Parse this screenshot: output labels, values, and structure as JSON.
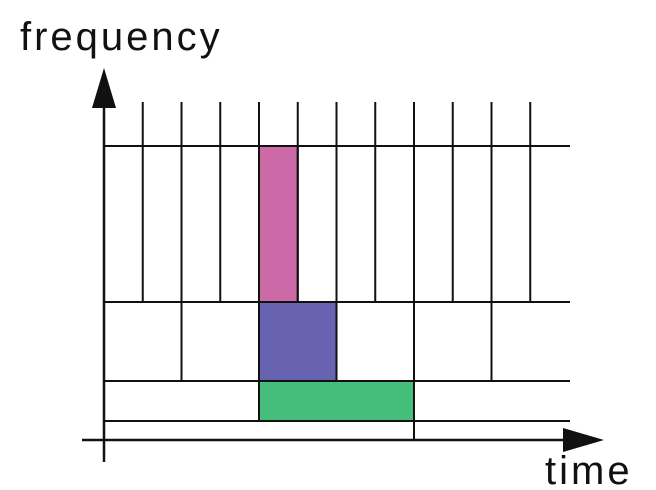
{
  "labels": {
    "y_axis": "frequency",
    "x_axis": "time"
  },
  "tiling": {
    "time_slots": 12,
    "bands": [
      {
        "frequency_range": [
          6,
          10
        ],
        "cell_width_slots": 1
      },
      {
        "frequency_range": [
          2,
          6
        ],
        "cell_width_slots": 2
      },
      {
        "frequency_range": [
          1,
          2
        ],
        "cell_width_slots": 4
      },
      {
        "frequency_range": [
          0,
          1
        ],
        "cell_width_slots": 8
      }
    ]
  },
  "highlighted_cells": [
    {
      "time_range": [
        4,
        5
      ],
      "frequency_range": [
        6,
        10
      ],
      "color": "#cc6aa8"
    },
    {
      "time_range": [
        4,
        6
      ],
      "frequency_range": [
        2,
        6
      ],
      "color": "#6763b1"
    },
    {
      "time_range": [
        4,
        8
      ],
      "frequency_range": [
        1,
        2
      ],
      "color": "#45be7b"
    }
  ],
  "colors": {
    "line": "#111111"
  }
}
